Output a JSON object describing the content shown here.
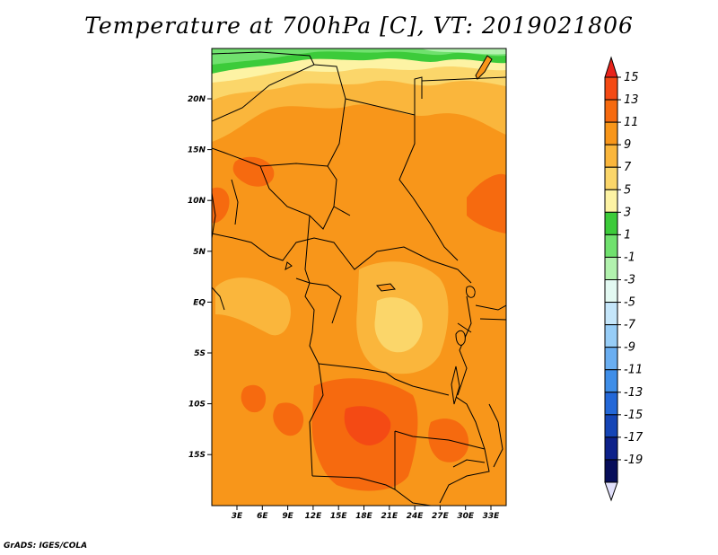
{
  "title": "Temperature at 700hPa [C], VT: 2019021806",
  "credit": "GrADS: IGES/COLA",
  "lat_ticks": [
    "20N",
    "15N",
    "10N",
    "5N",
    "EQ",
    "5S",
    "10S",
    "15S"
  ],
  "lon_ticks": [
    "3E",
    "6E",
    "9E",
    "12E",
    "15E",
    "18E",
    "21E",
    "24E",
    "27E",
    "30E",
    "33E"
  ],
  "colorbar": {
    "labels": [
      "15",
      "13",
      "11",
      "9",
      "7",
      "5",
      "3",
      "1",
      "-1",
      "-3",
      "-5",
      "-7",
      "-9",
      "-11",
      "-13",
      "-15",
      "-17",
      "-19"
    ],
    "colors": [
      "#e8231b",
      "#f44a14",
      "#f66a0f",
      "#f8961a",
      "#fab63c",
      "#fbd66a",
      "#fdf3a4",
      "#3ccb3a",
      "#70e16e",
      "#b2f2ae",
      "#e3f9f2",
      "#c5e6fa",
      "#97cdf7",
      "#6aaef1",
      "#3f8ee8",
      "#2468d8",
      "#1545b6",
      "#0d218a",
      "#070e5a",
      "#e1e0fb"
    ]
  }
}
